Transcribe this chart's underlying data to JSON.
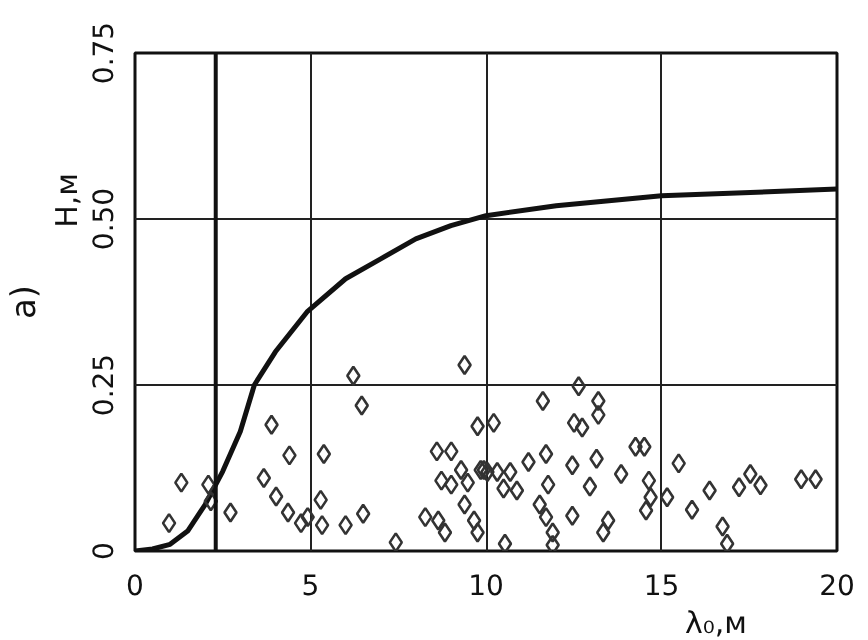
{
  "chart_data": {
    "type": "scatter",
    "xlabel": "λ₀,м",
    "ylabel": "H,м",
    "annotations": [
      "а)"
    ],
    "xlim": [
      0,
      20
    ],
    "ylim": [
      0,
      0.75
    ],
    "xticks": [
      0,
      5,
      10,
      15,
      20
    ],
    "yticks": [
      0,
      {
        "value": 0.25,
        "label": "0.25"
      },
      {
        "value": 0.5,
        "label": "0.50"
      },
      {
        "value": 0.75,
        "label": "0.75"
      }
    ],
    "grid": true,
    "marker": "diamond",
    "ref_lines": [
      {
        "axis": "x",
        "value": 2.3,
        "color": "#111111",
        "line_style": "solid"
      }
    ],
    "series": [
      {
        "type": "line",
        "color": "#111111",
        "marker": "none",
        "line_style": "solid",
        "x": [
          0,
          0.5,
          1,
          1.5,
          2,
          2.5,
          3,
          3.4,
          4,
          4.9,
          6,
          7,
          8,
          9,
          10,
          12,
          15,
          20
        ],
        "values": [
          0,
          0.003,
          0.01,
          0.03,
          0.07,
          0.12,
          0.18,
          0.25,
          0.3,
          0.36,
          0.41,
          0.44,
          0.47,
          0.49,
          0.505,
          0.52,
          0.535,
          0.545
        ]
      },
      {
        "color": "#333333",
        "x": [
          0.97,
          1.32,
          2.09,
          2.16,
          2.72,
          3.89,
          4.4,
          3.67,
          4.02,
          4.36,
          4.73,
          4.92,
          5.29,
          5.38,
          5.33,
          6.0,
          6.5,
          6.22,
          6.46,
          7.43,
          9.39,
          9.76,
          8.6,
          9.01,
          8.73,
          9.01,
          9.29,
          9.48,
          8.27,
          8.64,
          8.83,
          9.39,
          9.66,
          9.76,
          9.85,
          10.04,
          10.22,
          9.94,
          10.32,
          10.69,
          10.5,
          10.88,
          11.21,
          11.62,
          11.71,
          11.77,
          11.53,
          11.71,
          11.9,
          11.9,
          10.54,
          12.46,
          12.64,
          12.51,
          12.74,
          13.2,
          13.2,
          13.15,
          12.96,
          12.46,
          13.48,
          13.34,
          13.85,
          14.26,
          14.51,
          14.64,
          14.69,
          14.56,
          15.16,
          15.49,
          15.87,
          16.37,
          16.74,
          16.87,
          17.21,
          17.53,
          17.82,
          18.98,
          19.39
        ],
        "values": [
          0.042,
          0.103,
          0.1,
          0.075,
          0.058,
          0.19,
          0.144,
          0.11,
          0.082,
          0.058,
          0.042,
          0.051,
          0.077,
          0.146,
          0.039,
          0.039,
          0.056,
          0.264,
          0.219,
          0.013,
          0.28,
          0.188,
          0.15,
          0.15,
          0.106,
          0.1,
          0.122,
          0.103,
          0.051,
          0.046,
          0.028,
          0.07,
          0.046,
          0.028,
          0.122,
          0.119,
          0.193,
          0.122,
          0.119,
          0.119,
          0.094,
          0.091,
          0.134,
          0.226,
          0.146,
          0.1,
          0.07,
          0.051,
          0.028,
          0.009,
          0.011,
          0.129,
          0.248,
          0.193,
          0.186,
          0.226,
          0.205,
          0.139,
          0.097,
          0.053,
          0.046,
          0.028,
          0.116,
          0.157,
          0.157,
          0.106,
          0.081,
          0.061,
          0.081,
          0.132,
          0.062,
          0.091,
          0.037,
          0.011,
          0.096,
          0.116,
          0.099,
          0.108,
          0.108
        ]
      }
    ]
  }
}
